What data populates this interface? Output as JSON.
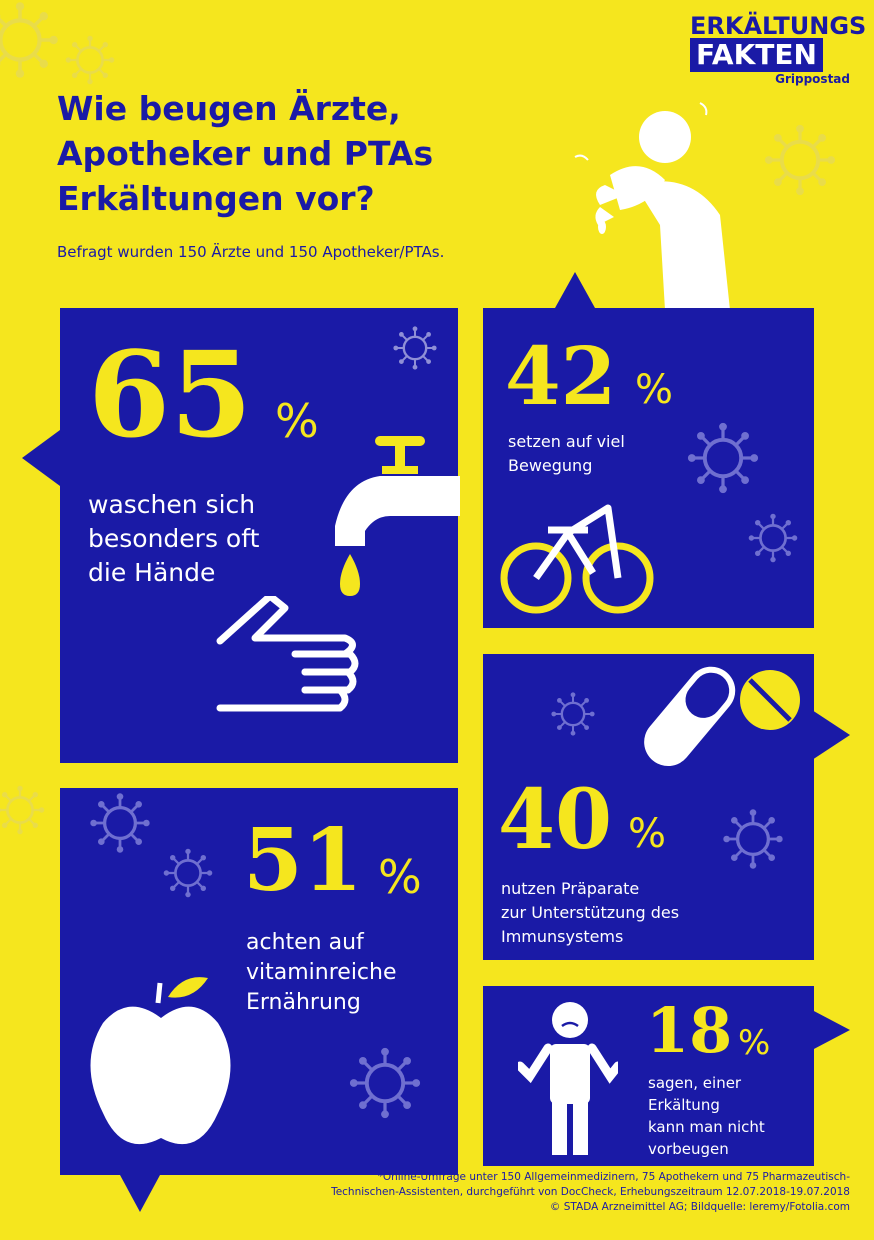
{
  "brand": {
    "line1": "ERKÄLTUNGS",
    "line2": "FAKTEN",
    "line3": "Grippostad"
  },
  "title": {
    "line1": "Wie beugen Ärzte,",
    "line2": "Apotheker und PTAs",
    "line3": "Erkältungen vor?"
  },
  "subtitle": "Befragt wurden 150 Ärzte und 150 Apotheker/PTAs.",
  "stats": {
    "hands": {
      "value": "65",
      "unit": "%",
      "line1": "waschen sich",
      "line2": "besonders oft",
      "line3": "die Hände"
    },
    "movement": {
      "value": "42",
      "unit": "%",
      "line1": "setzen auf viel",
      "line2": "Bewegung"
    },
    "nutrition": {
      "value": "51",
      "unit": "%",
      "line1": "achten auf",
      "line2": "vitaminreiche",
      "line3": "Ernährung"
    },
    "preparations": {
      "value": "40",
      "unit": "%",
      "line1": "nutzen Präparate",
      "line2": "zur Unterstützung des",
      "line3": "Immunsystems"
    },
    "fatalism": {
      "value": "18",
      "unit": "%",
      "line1": "sagen, einer",
      "line2": "Erkältung",
      "line3": "kann man nicht",
      "line4": "vorbeugen"
    }
  },
  "footnote": {
    "line1": "*Online-Umfrage unter 150 Allgemeinmedizinern, 75 Apothekern und 75 Pharmazeutisch-",
    "line2": "Technischen-Assistenten, durchgeführt von DocCheck, Erhebungszeitraum 12.07.2018-19.07.2018",
    "line3": "© STADA Arzneimittel AG; Bildquelle: leremy/Fotolia.com"
  },
  "colors": {
    "background": "#f5e61e",
    "panel": "#1a1aa6",
    "accent": "#f5e61e",
    "text": "#ffffff"
  },
  "icons": [
    "virus-icon",
    "sneezing-person-icon",
    "faucet-icon",
    "hand-icon",
    "bicycle-icon",
    "capsule-icon",
    "pill-icon",
    "apple-icon",
    "shrugging-person-icon"
  ]
}
